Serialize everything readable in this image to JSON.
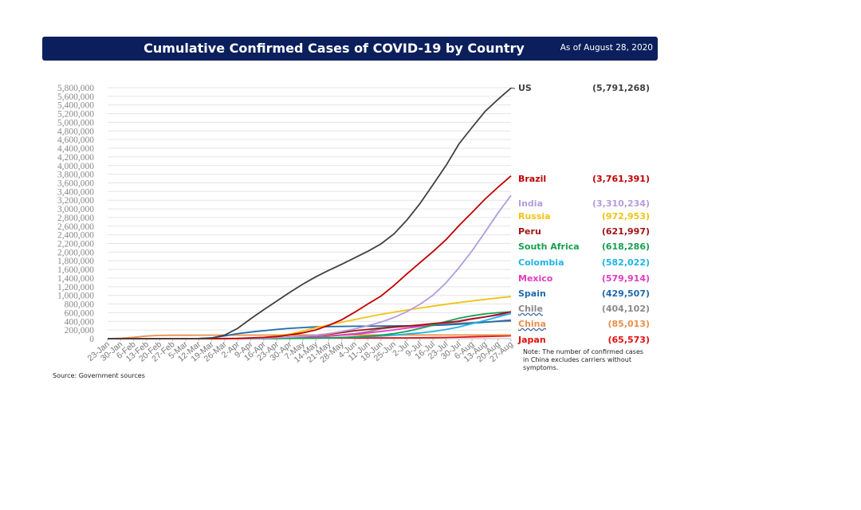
{
  "header": {
    "title": "Cumulative Confirmed Cases of COVID-19 by Country",
    "as_of": "As of August 28, 2020"
  },
  "note": "Note: The number of confirmed cases in China excludes carriers without symptoms.",
  "source": "Source: Government  sources",
  "chart_data": {
    "type": "line",
    "title": "Cumulative Confirmed Cases of COVID-19 by Country",
    "ylim": [
      0,
      5800000
    ],
    "yticks": [
      "0",
      "200,000",
      "400,000",
      "600,000",
      "800,000",
      "1,000,000",
      "1,200,000",
      "1,400,000",
      "1,600,000",
      "1,800,000",
      "2,000,000",
      "2,200,000",
      "2,400,000",
      "2,600,000",
      "2,800,000",
      "3,000,000",
      "3,200,000",
      "3,400,000",
      "3,600,000",
      "3,800,000",
      "4,000,000",
      "4,200,000",
      "4,400,000",
      "4,600,000",
      "4,800,000",
      "5,000,000",
      "5,200,000",
      "5,400,000",
      "5,600,000",
      "5,800,000"
    ],
    "categories": [
      "23-Jan",
      "30-Jan",
      "6-Feb",
      "13-Feb",
      "20-Feb",
      "27-Feb",
      "5-Mar",
      "12-Mar",
      "19-Mar",
      "26-Mar",
      "2-Apr",
      "9-Apr",
      "16-Apr",
      "23-Apr",
      "30-Apr",
      "7-May",
      "14-May",
      "21-May",
      "28-May",
      "4-Jun",
      "11-Jun",
      "18-Jun",
      "25-Jun",
      "2-Jul",
      "9-Jul",
      "16-Jul",
      "23-Jul",
      "30-Jul",
      "6-Aug",
      "13-Aug",
      "20-Aug",
      "27-Aug"
    ],
    "units": "thousands",
    "series": [
      {
        "name": "US",
        "label": "(5,791,268)",
        "color": "#404040",
        "values": [
          0,
          0,
          0,
          0,
          0,
          0,
          0.2,
          1.6,
          14,
          83,
          240,
          460,
          670,
          870,
          1070,
          1260,
          1430,
          1580,
          1720,
          1870,
          2020,
          2190,
          2420,
          2740,
          3120,
          3560,
          4000,
          4500,
          4880,
          5250,
          5530,
          5791
        ]
      },
      {
        "name": "Brazil",
        "label": "(3,761,391)",
        "color": "#c00000",
        "values": [
          0,
          0,
          0,
          0,
          0,
          0,
          0,
          0.1,
          0.6,
          3,
          8,
          18,
          30,
          50,
          86,
          135,
          203,
          310,
          438,
          614,
          802,
          983,
          1228,
          1497,
          1755,
          2012,
          2287,
          2613,
          2913,
          3224,
          3501,
          3761
        ]
      },
      {
        "name": "India",
        "label": "(3,310,234)",
        "color": "#b49cdc",
        "values": [
          0,
          0,
          0,
          0,
          0,
          0,
          0,
          0.1,
          0.2,
          0.7,
          2.5,
          6,
          13,
          22,
          34,
          56,
          82,
          118,
          165,
          226,
          298,
          381,
          490,
          625,
          794,
          1004,
          1288,
          1638,
          2027,
          2461,
          2905,
          3310
        ]
      },
      {
        "name": "Russia",
        "label": "(972,953)",
        "color": "#f2c314",
        "values": [
          0,
          0,
          0,
          0,
          0,
          0,
          0,
          0,
          0.2,
          1,
          3.5,
          10,
          27,
          62,
          107,
          177,
          252,
          317,
          379,
          441,
          502,
          561,
          614,
          661,
          707,
          752,
          795,
          834,
          871,
          907,
          942,
          973
        ]
      },
      {
        "name": "Peru",
        "label": "(621,997)",
        "color": "#a01414",
        "values": [
          0,
          0,
          0,
          0,
          0,
          0,
          0,
          0,
          0.2,
          0.6,
          1.5,
          5,
          12,
          20,
          36,
          58,
          80,
          108,
          141,
          184,
          214,
          244,
          272,
          292,
          317,
          350,
          375,
          400,
          455,
          500,
          560,
          622
        ]
      },
      {
        "name": "South Africa",
        "label": "(618,286)",
        "color": "#16a050",
        "values": [
          0,
          0,
          0,
          0,
          0,
          0,
          0,
          0,
          0.2,
          0.9,
          1.5,
          2,
          3,
          3.9,
          5.6,
          8,
          12,
          19,
          27,
          40,
          58,
          83,
          118,
          168,
          238,
          311,
          395,
          471,
          529,
          572,
          600,
          618
        ]
      },
      {
        "name": "Colombia",
        "label": "(582,022)",
        "color": "#1eb4e6",
        "values": [
          0,
          0,
          0,
          0,
          0,
          0,
          0,
          0,
          0.1,
          0.5,
          1.1,
          2.5,
          3.4,
          4.5,
          6.5,
          9,
          13,
          18,
          25,
          34,
          46,
          60,
          80,
          106,
          133,
          165,
          211,
          268,
          345,
          422,
          502,
          582
        ]
      },
      {
        "name": "Mexico",
        "label": "(579,914)",
        "color": "#e03cc0",
        "values": [
          0,
          0,
          0,
          0,
          0,
          0,
          0,
          0,
          0.1,
          0.5,
          1.5,
          3.2,
          6.3,
          11,
          19,
          29,
          42,
          59,
          81,
          105,
          134,
          166,
          203,
          245,
          282,
          325,
          362,
          408,
          462,
          505,
          543,
          580
        ]
      },
      {
        "name": "Spain",
        "label": "(429,507)",
        "color": "#1f6aaa",
        "values": [
          0,
          0,
          0,
          0,
          0,
          0,
          0.3,
          3,
          18,
          65,
          117,
          153,
          185,
          213,
          240,
          256,
          272,
          280,
          284,
          288,
          290,
          292,
          295,
          297,
          300,
          307,
          318,
          335,
          355,
          380,
          405,
          430
        ]
      },
      {
        "name": "Chile",
        "label": "(404,102)",
        "color": "#8a8a8a",
        "values": [
          0,
          0,
          0,
          0,
          0,
          0,
          0,
          0,
          0.3,
          1.3,
          3.4,
          6,
          8.8,
          11,
          16,
          25,
          37,
          57,
          90,
          118,
          160,
          226,
          264,
          285,
          310,
          330,
          343,
          355,
          370,
          383,
          395,
          404
        ]
      },
      {
        "name": "China",
        "label": "(85,013)",
        "color": "#e8904a",
        "values": [
          0.6,
          9.7,
          31,
          60,
          75,
          79,
          80,
          81,
          81,
          82,
          82,
          82,
          83,
          84,
          84,
          84,
          84,
          84,
          84,
          84,
          84,
          84,
          84,
          85,
          85,
          85,
          85,
          85,
          85,
          85,
          85,
          85
        ]
      },
      {
        "name": "Japan",
        "label": "(65,573)",
        "color": "#e01010",
        "values": [
          0,
          0,
          0,
          0,
          0.1,
          0.2,
          0.4,
          0.6,
          0.9,
          1.3,
          2.4,
          5.5,
          9.3,
          12,
          14,
          15.5,
          16,
          16.5,
          16.7,
          17,
          17.3,
          17.6,
          18,
          18.9,
          20.7,
          23.9,
          28.5,
          34.4,
          42,
          50,
          58,
          65.6
        ]
      }
    ]
  }
}
